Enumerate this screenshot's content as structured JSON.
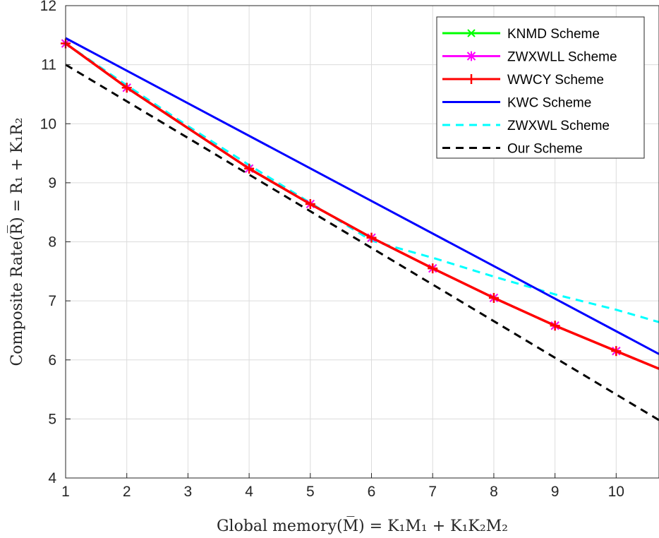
{
  "chart_data": {
    "type": "line",
    "xlabel": "Global memory(M̅) = K₁M₁ + K₁K₂M₂",
    "ylabel": "Composite Rate(R̅) = R₁ + K₁R₂",
    "xlim": [
      1,
      10.7
    ],
    "ylim": [
      4,
      12
    ],
    "xticks": [
      "1",
      "2",
      "3",
      "4",
      "5",
      "6",
      "7",
      "8",
      "9",
      "10"
    ],
    "yticks": [
      "4",
      "5",
      "6",
      "7",
      "8",
      "9",
      "10",
      "11",
      "12"
    ],
    "grid": true,
    "legend_position": "top-right",
    "series": [
      {
        "name": "KNMD Scheme",
        "color": "#00ff00",
        "style": "solid",
        "marker": "x",
        "x": [
          1,
          2,
          4,
          5,
          6,
          7,
          8,
          9,
          10,
          10.7
        ],
        "y": [
          11.36,
          10.61,
          9.24,
          8.64,
          8.07,
          7.55,
          7.05,
          6.58,
          6.15,
          5.85
        ]
      },
      {
        "name": "ZWXWLL Scheme",
        "color": "#ff00ff",
        "style": "solid",
        "marker": "asterisk",
        "x": [
          1,
          2,
          4,
          5,
          6,
          7,
          8,
          9,
          10,
          10.7
        ],
        "y": [
          11.36,
          10.61,
          9.24,
          8.64,
          8.07,
          7.55,
          7.05,
          6.58,
          6.15,
          5.85
        ]
      },
      {
        "name": "WWCY Scheme",
        "color": "#ff0000",
        "style": "solid",
        "marker": "plus",
        "x": [
          1,
          2,
          4,
          5,
          6,
          7,
          8,
          9,
          10,
          10.7
        ],
        "y": [
          11.36,
          10.61,
          9.24,
          8.64,
          8.07,
          7.55,
          7.05,
          6.58,
          6.15,
          5.85
        ]
      },
      {
        "name": "KWC Scheme",
        "color": "#0000ff",
        "style": "solid",
        "marker": "none",
        "x": [
          1,
          10.7
        ],
        "y": [
          11.45,
          6.1
        ]
      },
      {
        "name": "ZWXWL Scheme",
        "color": "#00ffff",
        "style": "dashed",
        "marker": "none",
        "x": [
          1,
          2,
          3,
          4,
          5,
          6,
          7,
          8,
          9,
          10,
          10.7
        ],
        "y": [
          11.36,
          10.65,
          9.96,
          9.3,
          8.66,
          8.02,
          7.73,
          7.41,
          7.11,
          6.85,
          6.64
        ]
      },
      {
        "name": "Our Scheme",
        "color": "#000000",
        "style": "dashed",
        "marker": "none",
        "x": [
          1,
          10.7
        ],
        "y": [
          11.0,
          4.98
        ]
      }
    ]
  }
}
